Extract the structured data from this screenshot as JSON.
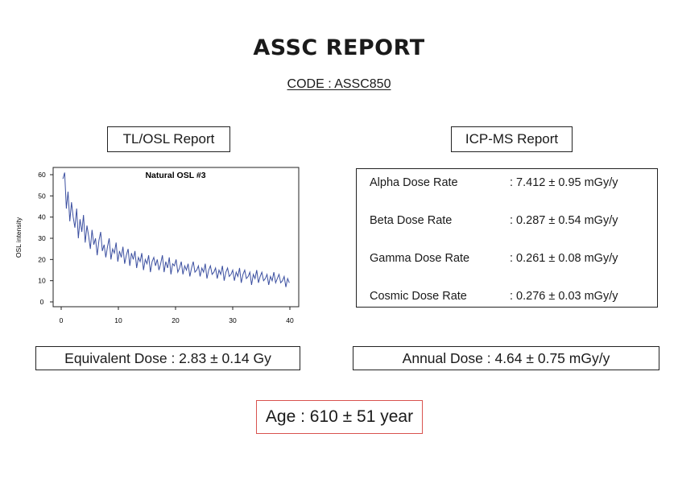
{
  "report": {
    "title": "ASSC REPORT",
    "code": "CODE : ASSC850"
  },
  "tl_osl": {
    "label": "TL/OSL Report",
    "equivalent_dose": "Equivalent Dose : 2.83 ± 0.14 Gy"
  },
  "icp_ms": {
    "label": "ICP-MS Report",
    "rows": [
      {
        "label": "Alpha Dose Rate",
        "value": ": 7.412 ± 0.95 mGy/y"
      },
      {
        "label": "Beta Dose Rate",
        "value": ": 0.287 ± 0.54 mGy/y"
      },
      {
        "label": "Gamma Dose Rate",
        "value": ": 0.261 ± 0.08 mGy/y"
      },
      {
        "label": "Cosmic Dose Rate",
        "value": ": 0.276 ± 0.03 mGy/y"
      }
    ],
    "annual_dose": "Annual Dose : 4.64 ± 0.75 mGy/y"
  },
  "age": "Age : 610 ± 51 year",
  "colors": {
    "line": "#3b4fa0",
    "age_border": "#d9534f"
  },
  "chart_data": {
    "type": "line",
    "title": "Natural OSL #3",
    "xlabel": "",
    "ylabel": "OSL intensity",
    "xlim": [
      0,
      40
    ],
    "ylim": [
      0,
      62
    ],
    "x_ticks": [
      0,
      10,
      20,
      30,
      40
    ],
    "y_ticks": [
      0,
      10,
      20,
      30,
      40,
      50,
      60
    ],
    "grid": false,
    "series": [
      {
        "x": [
          0.3,
          0.6,
          0.9,
          1.2,
          1.5,
          1.8,
          2.1,
          2.4,
          2.7,
          3.0,
          3.3,
          3.6,
          3.9,
          4.2,
          4.5,
          4.8,
          5.1,
          5.4,
          5.7,
          6.0,
          6.3,
          6.6,
          6.9,
          7.2,
          7.5,
          7.8,
          8.1,
          8.4,
          8.7,
          9.0,
          9.3,
          9.6,
          9.9,
          10.2,
          10.5,
          10.8,
          11.1,
          11.4,
          11.7,
          12.0,
          12.3,
          12.6,
          12.9,
          13.2,
          13.5,
          13.8,
          14.1,
          14.4,
          14.7,
          15.0,
          15.3,
          15.6,
          15.9,
          16.2,
          16.5,
          16.8,
          17.1,
          17.4,
          17.7,
          18.0,
          18.3,
          18.6,
          18.9,
          19.2,
          19.5,
          19.8,
          20.1,
          20.4,
          20.7,
          21.0,
          21.3,
          21.6,
          21.9,
          22.2,
          22.5,
          22.8,
          23.1,
          23.4,
          23.7,
          24.0,
          24.3,
          24.6,
          24.9,
          25.2,
          25.5,
          25.8,
          26.1,
          26.4,
          26.7,
          27.0,
          27.3,
          27.6,
          27.9,
          28.2,
          28.5,
          28.8,
          29.1,
          29.4,
          29.7,
          30.0,
          30.3,
          30.6,
          30.9,
          31.2,
          31.5,
          31.8,
          32.1,
          32.4,
          32.7,
          33.0,
          33.3,
          33.6,
          33.9,
          34.2,
          34.5,
          34.8,
          35.1,
          35.4,
          35.7,
          36.0,
          36.3,
          36.6,
          36.9,
          37.2,
          37.5,
          37.8,
          38.1,
          38.4,
          38.7,
          39.0,
          39.3,
          39.6,
          39.9
        ],
        "y": [
          58,
          61,
          44,
          52,
          38,
          47,
          40,
          35,
          44,
          30,
          39,
          33,
          41,
          28,
          36,
          31,
          25,
          34,
          27,
          30,
          22,
          29,
          33,
          24,
          27,
          21,
          26,
          30,
          20,
          25,
          23,
          28,
          19,
          24,
          21,
          26,
          18,
          22,
          25,
          17,
          23,
          20,
          24,
          16,
          21,
          19,
          23,
          15,
          20,
          18,
          22,
          14,
          19,
          21,
          17,
          20,
          15,
          18,
          22,
          14,
          19,
          16,
          21,
          13,
          18,
          17,
          20,
          14,
          16,
          19,
          13,
          17,
          15,
          18,
          12,
          16,
          19,
          14,
          15,
          17,
          12,
          16,
          14,
          18,
          11,
          15,
          17,
          13,
          14,
          16,
          11,
          15,
          13,
          17,
          10,
          14,
          16,
          12,
          13,
          15,
          10,
          14,
          12,
          16,
          9,
          13,
          15,
          11,
          12,
          14,
          8,
          13,
          11,
          15,
          9,
          12,
          14,
          10,
          11,
          13,
          8,
          12,
          10,
          14,
          9,
          11,
          13,
          9,
          10,
          12,
          7,
          11,
          9
        ]
      }
    ]
  }
}
